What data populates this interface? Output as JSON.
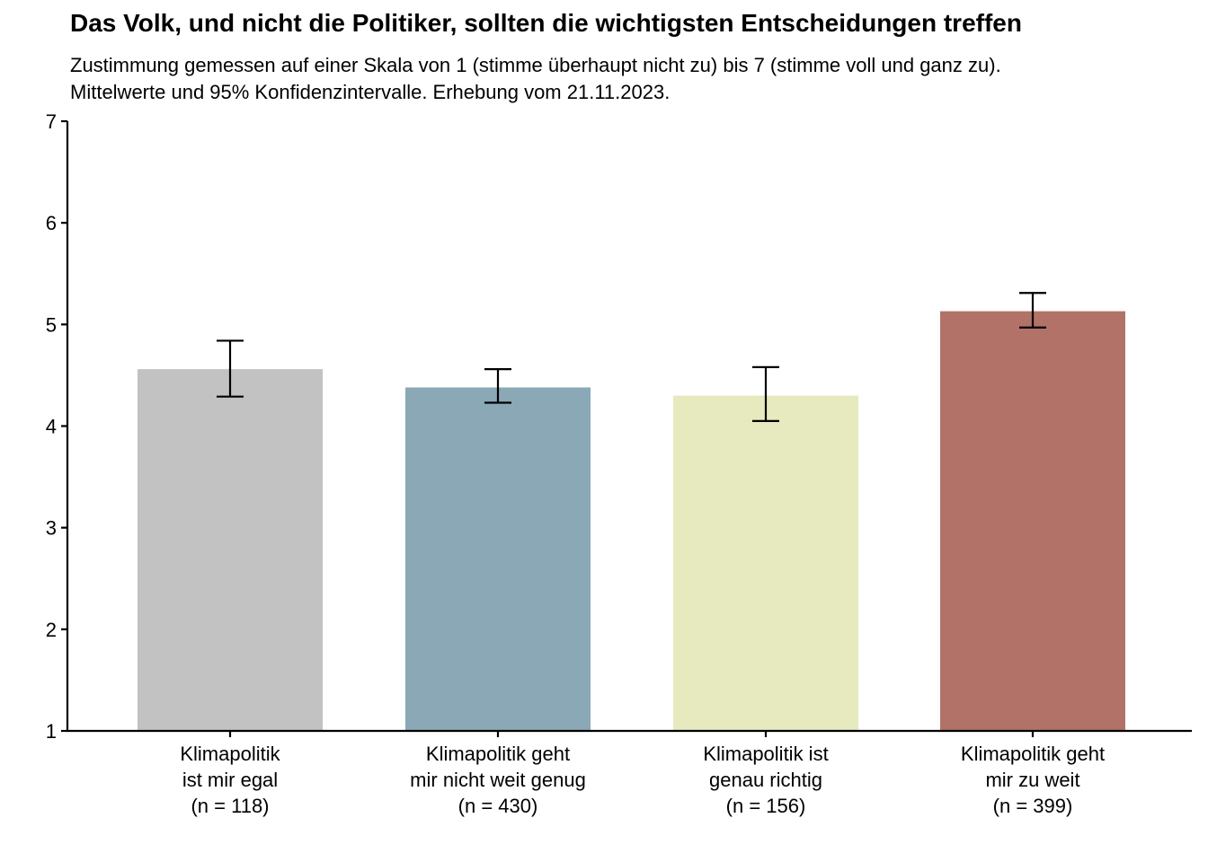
{
  "chart_data": {
    "type": "bar",
    "title": "Das Volk, und nicht die Politiker, sollten die wichtigsten Entscheidungen treffen",
    "subtitle": [
      "Zustimmung gemessen auf einer Skala von 1 (stimme überhaupt nicht zu) bis 7 (stimme voll und ganz zu).",
      "Mittelwerte und 95% Konfidenzintervalle. Erhebung vom 21.11.2023."
    ],
    "xlabel": "",
    "ylabel": "",
    "ylim": [
      1,
      7
    ],
    "yticks": [
      "1",
      "2",
      "3",
      "4",
      "5",
      "6",
      "7"
    ],
    "grid": false,
    "legend": "none",
    "categories": [
      [
        "Klimapolitik",
        "ist mir egal",
        "(n = 118)"
      ],
      [
        "Klimapolitik geht",
        "mir nicht weit genug",
        "(n = 430)"
      ],
      [
        "Klimapolitik ist",
        "genau richtig",
        "(n = 156)"
      ],
      [
        "Klimapolitik geht",
        "mir zu weit",
        "(n = 399)"
      ]
    ],
    "values": [
      4.56,
      4.38,
      4.3,
      5.13
    ],
    "ci_lower": [
      4.29,
      4.23,
      4.05,
      4.97
    ],
    "ci_upper": [
      4.84,
      4.56,
      4.58,
      5.31
    ],
    "colors": [
      "#c2c2c2",
      "#8aa8b5",
      "#e6eabe",
      "#b27267"
    ]
  }
}
